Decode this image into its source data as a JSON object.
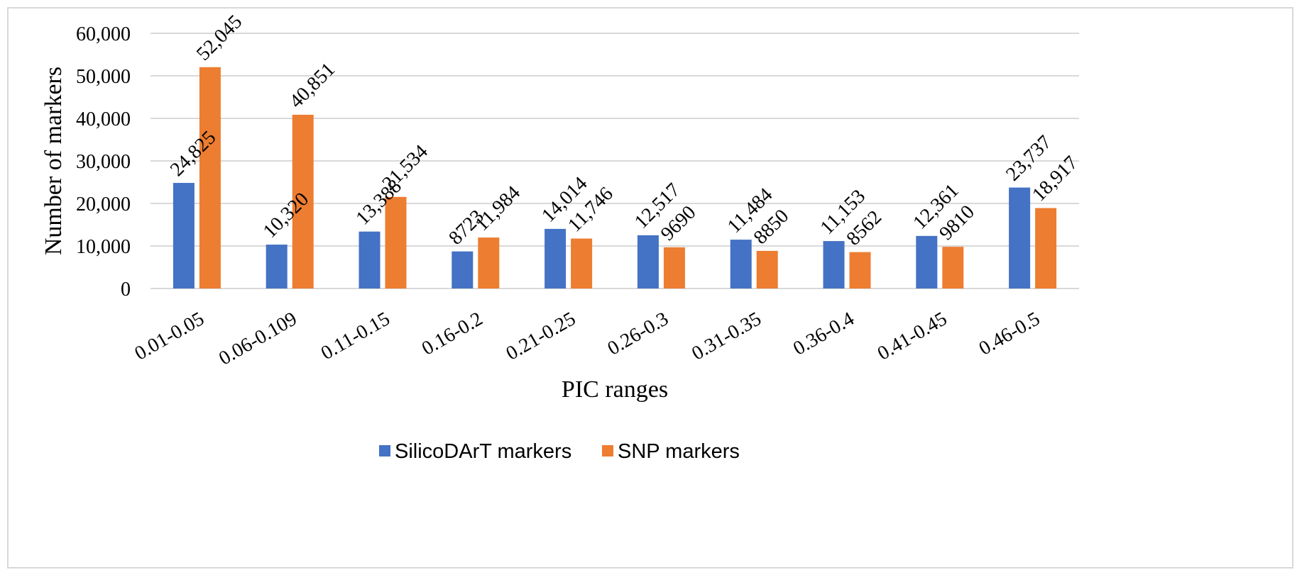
{
  "chart_data": {
    "type": "bar",
    "title": "",
    "xlabel": "PIC ranges",
    "ylabel": "Number of markers",
    "ylim": [
      0,
      60000
    ],
    "yticks": [
      0,
      10000,
      20000,
      30000,
      40000,
      50000,
      60000
    ],
    "ytick_labels": [
      "0",
      "10,000",
      "20,000",
      "30,000",
      "40,000",
      "50,000",
      "60,000"
    ],
    "grid": true,
    "legend_position": "bottom",
    "categories": [
      "0.01-0.05",
      "0.06-0.109",
      "0.11-0.15",
      "0.16-0.2",
      "0.21-0.25",
      "0.26-0.3",
      "0.31-0.35",
      "0.36-0.4",
      "0.41-0.45",
      "0.46-0.5"
    ],
    "series": [
      {
        "name": "SilicoDArT markers",
        "color": "#4472c4",
        "values": [
          24825,
          10320,
          13388,
          8723,
          14014,
          12517,
          11484,
          11153,
          12361,
          23737
        ],
        "labels": [
          "24,825",
          "10,320",
          "13,388",
          "8723",
          "14,014",
          "12,517",
          "11,484",
          "11,153",
          "12,361",
          "23,737"
        ]
      },
      {
        "name": "SNP markers",
        "color": "#ed7d31",
        "values": [
          52045,
          40851,
          21534,
          11984,
          11746,
          9690,
          8850,
          8562,
          9810,
          18917
        ],
        "labels": [
          "52,045",
          "40,851",
          "21,534",
          "11,984",
          "11,746",
          "9690",
          "8850",
          "8562",
          "9810",
          "18,917"
        ]
      }
    ],
    "gridline_color": "#d9d9d9",
    "axis_color": "#d9d9d9"
  }
}
